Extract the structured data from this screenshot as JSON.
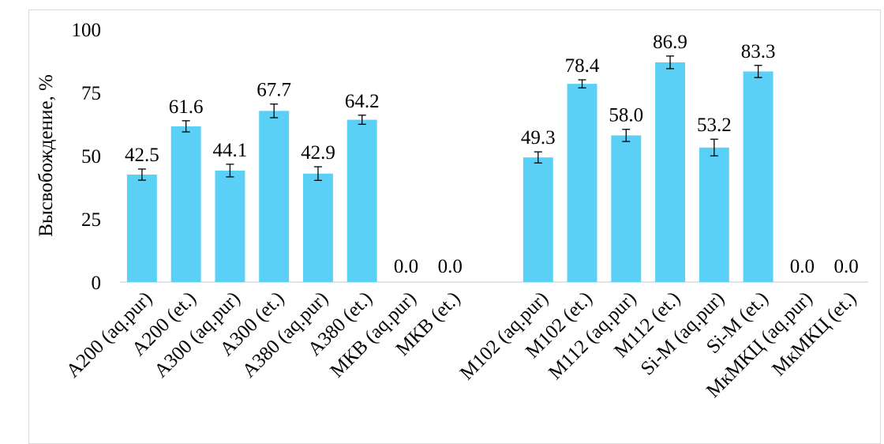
{
  "chart_data": {
    "type": "bar",
    "title": "",
    "xlabel": "",
    "ylabel": "Высвобождение, %",
    "ylim": [
      0,
      100
    ],
    "yticks": [
      "0",
      "25",
      "50",
      "75",
      "100"
    ],
    "grid": false,
    "legend": "none",
    "bar_color": "#5bd0f7",
    "error_bar_color": "#000000",
    "categories": [
      "A200  (aq.pur)",
      "A200  (et.)",
      "A300  (aq.pur)",
      "A300  (et.)",
      "A380  (aq.pur)",
      "A380  (et.)",
      "МКВ  (aq.pur)",
      "МКВ  (et.)",
      "",
      "M102 (aq.pur)",
      "M102 (et.)",
      "M112 (aq.pur)",
      "M112 (et.)",
      "Si-M (aq.pur)",
      "Si-M (et.)",
      "МкМКЦ (aq.pur)",
      "МкМКЦ  (et.)"
    ],
    "values": [
      42.5,
      61.6,
      44.1,
      67.7,
      42.9,
      64.2,
      0.0,
      0.0,
      null,
      49.3,
      78.4,
      58.0,
      86.9,
      53.2,
      83.3,
      0.0,
      0.0
    ],
    "value_labels": [
      "42.5",
      "61.6",
      "44.1",
      "67.7",
      "42.9",
      "64.2",
      "0.0",
      "0.0",
      "",
      "49.3",
      "78.4",
      "58.0",
      "86.9",
      "53.2",
      "83.3",
      "0.0",
      "0.0"
    ],
    "errors": [
      2.2,
      2.2,
      2.5,
      2.7,
      2.7,
      1.8,
      0,
      0,
      null,
      2.2,
      1.6,
      2.4,
      2.5,
      3.3,
      2.4,
      0,
      0
    ]
  }
}
